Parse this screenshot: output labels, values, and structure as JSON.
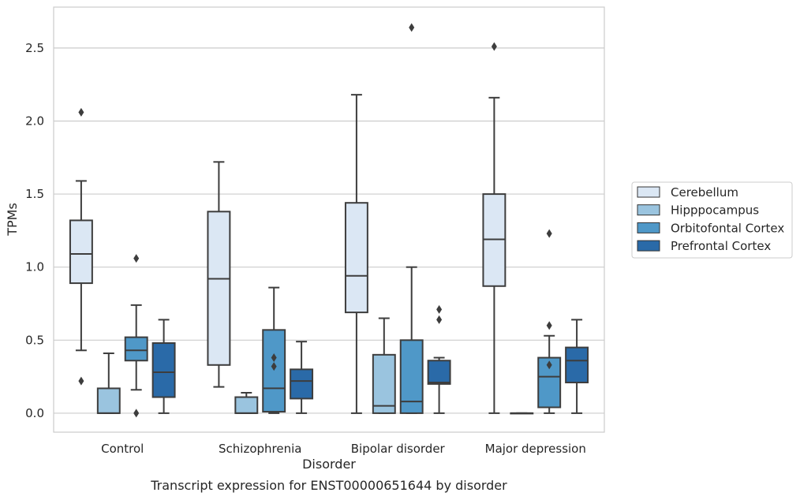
{
  "caption": "Transcript expression for ENST00000651644 by disorder",
  "chart_data": {
    "type": "box",
    "xlabel": "Disorder",
    "ylabel": "TPMs",
    "ylim": [
      -0.13,
      2.78
    ],
    "yticks": [
      0.0,
      0.5,
      1.0,
      1.5,
      2.0,
      2.5
    ],
    "ytick_labels": [
      "0.0",
      "0.5",
      "1.0",
      "1.5",
      "2.0",
      "2.5"
    ],
    "grid": "horizontal",
    "legend_position": "right",
    "categories": [
      "Control",
      "Schizophrenia",
      "Bipolar disorder",
      "Major depression"
    ],
    "series": [
      {
        "name": "Cerebellum",
        "color": "#dbe7f4",
        "boxes": [
          {
            "whislo": 0.43,
            "q1": 0.89,
            "med": 1.09,
            "q3": 1.32,
            "whishi": 1.59,
            "fliers": [
              2.06,
              0.22
            ]
          },
          {
            "whislo": 0.18,
            "q1": 0.33,
            "med": 0.92,
            "q3": 1.38,
            "whishi": 1.72,
            "fliers": []
          },
          {
            "whislo": 0.0,
            "q1": 0.69,
            "med": 0.94,
            "q3": 1.44,
            "whishi": 2.18,
            "fliers": []
          },
          {
            "whislo": 0.0,
            "q1": 0.87,
            "med": 1.19,
            "q3": 1.5,
            "whishi": 2.16,
            "fliers": [
              2.51
            ]
          }
        ]
      },
      {
        "name": "Hipppocampus",
        "color": "#9ac4df",
        "boxes": [
          {
            "whislo": 0.0,
            "q1": 0.0,
            "med": 0.0,
            "q3": 0.17,
            "whishi": 0.41,
            "fliers": []
          },
          {
            "whislo": 0.0,
            "q1": 0.0,
            "med": 0.0,
            "q3": 0.11,
            "whishi": 0.14,
            "fliers": []
          },
          {
            "whislo": 0.0,
            "q1": 0.0,
            "med": 0.05,
            "q3": 0.4,
            "whishi": 0.65,
            "fliers": []
          },
          {
            "whislo": 0.0,
            "q1": 0.0,
            "med": 0.0,
            "q3": 0.0,
            "whishi": 0.0,
            "fliers": []
          }
        ]
      },
      {
        "name": "Orbitofontal Cortex",
        "color": "#4f98c8",
        "boxes": [
          {
            "whislo": 0.16,
            "q1": 0.36,
            "med": 0.43,
            "q3": 0.52,
            "whishi": 0.74,
            "fliers": [
              1.06,
              0.0
            ]
          },
          {
            "whislo": 0.0,
            "q1": 0.01,
            "med": 0.17,
            "q3": 0.57,
            "whishi": 0.86,
            "fliers": [
              0.38,
              0.32
            ]
          },
          {
            "whislo": 0.0,
            "q1": 0.0,
            "med": 0.08,
            "q3": 0.5,
            "whishi": 1.0,
            "fliers": [
              2.64
            ]
          },
          {
            "whislo": 0.0,
            "q1": 0.04,
            "med": 0.25,
            "q3": 0.38,
            "whishi": 0.53,
            "fliers": [
              0.6,
              0.33,
              1.23
            ]
          }
        ]
      },
      {
        "name": "Prefrontal Cortex",
        "color": "#2a6aa8",
        "boxes": [
          {
            "whislo": 0.0,
            "q1": 0.11,
            "med": 0.28,
            "q3": 0.48,
            "whishi": 0.64,
            "fliers": []
          },
          {
            "whislo": 0.0,
            "q1": 0.1,
            "med": 0.22,
            "q3": 0.3,
            "whishi": 0.49,
            "fliers": []
          },
          {
            "whislo": 0.0,
            "q1": 0.2,
            "med": 0.21,
            "q3": 0.36,
            "whishi": 0.38,
            "fliers": [
              0.71,
              0.64
            ]
          },
          {
            "whislo": 0.0,
            "q1": 0.21,
            "med": 0.36,
            "q3": 0.45,
            "whishi": 0.64,
            "fliers": []
          }
        ]
      }
    ]
  }
}
